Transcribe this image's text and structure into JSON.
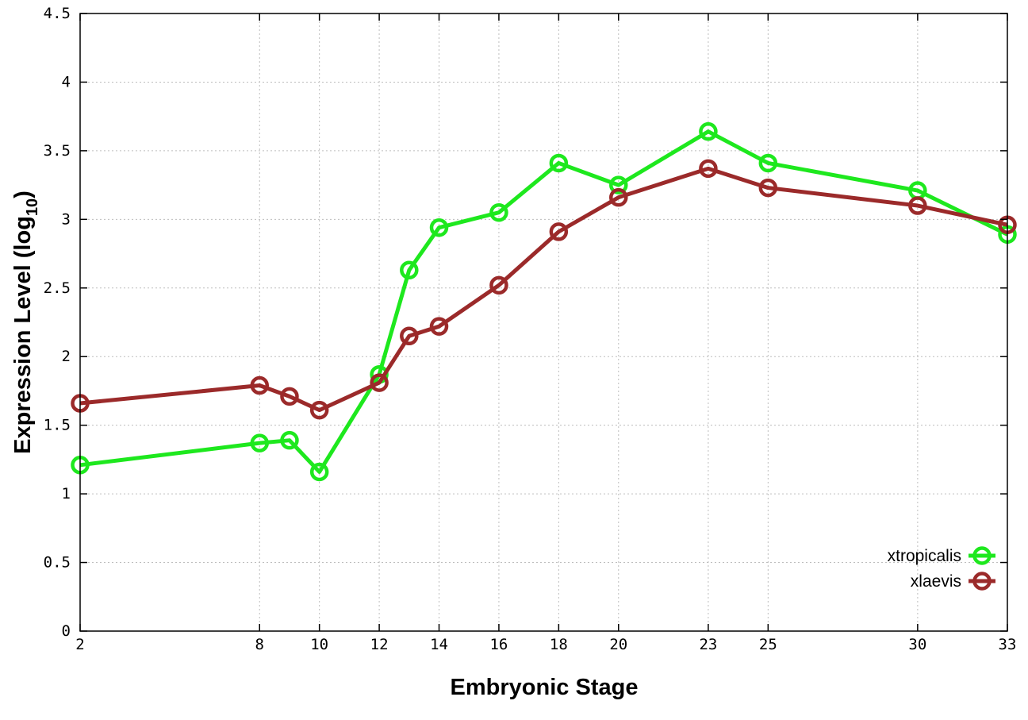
{
  "chart_data": {
    "type": "line",
    "title": "",
    "xlabel": "Embryonic Stage",
    "ylabel_main": "Expression Level (log",
    "ylabel_sub": "10",
    "ylabel_end": ")",
    "x": [
      2,
      8,
      9,
      10,
      12,
      13,
      14,
      16,
      18,
      20,
      23,
      25,
      30,
      33
    ],
    "xticks": [
      "2",
      "8",
      "10",
      "12",
      "14",
      "16",
      "18",
      "20",
      "23",
      "25",
      "30",
      "33"
    ],
    "xtick_values": [
      2,
      8,
      10,
      12,
      14,
      16,
      18,
      20,
      23,
      25,
      30,
      33
    ],
    "xlim": [
      2,
      33
    ],
    "yticks": [
      "0",
      "0.5",
      "1",
      "1.5",
      "2",
      "2.5",
      "3",
      "3.5",
      "4",
      "4.5"
    ],
    "ytick_values": [
      0,
      0.5,
      1,
      1.5,
      2,
      2.5,
      3,
      3.5,
      4,
      4.5
    ],
    "ylim": [
      0,
      4.5
    ],
    "grid": true,
    "legend_position": "bottom-right",
    "series": [
      {
        "name": "xtropicalis",
        "color": "#1ee81e",
        "values": [
          1.21,
          1.37,
          1.39,
          1.16,
          1.87,
          2.63,
          2.94,
          3.05,
          3.41,
          3.25,
          3.64,
          3.41,
          3.21,
          2.89
        ]
      },
      {
        "name": "xlaevis",
        "color": "#9b2a2a",
        "values": [
          1.66,
          1.79,
          1.71,
          1.61,
          1.81,
          2.15,
          2.22,
          2.52,
          2.91,
          3.16,
          3.37,
          3.23,
          3.1,
          2.96
        ]
      }
    ]
  }
}
